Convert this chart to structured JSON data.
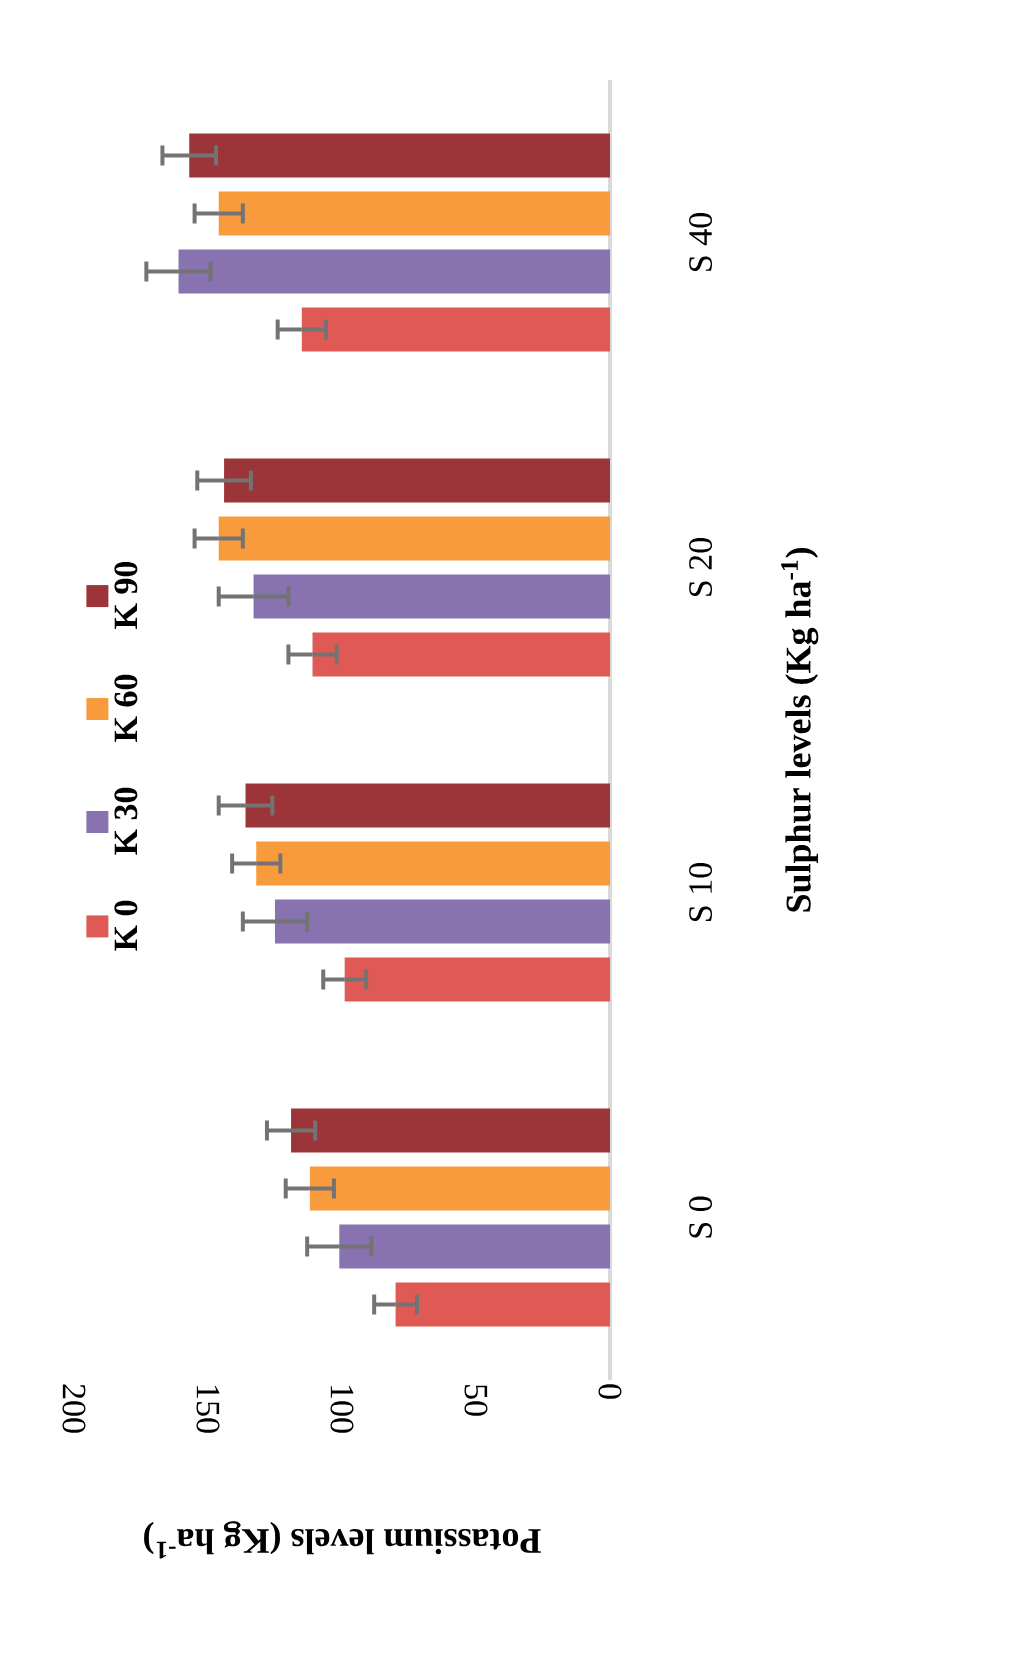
{
  "chart_data": {
    "type": "bar",
    "orientation": "horizontal",
    "xlabel": "Potassium levels (Kg ha$^{-1}$)",
    "ylabel": "Sulphur levels (Kg ha$^{-1}$)",
    "categories": [
      "S 40",
      "S 20",
      "S 10",
      "S 0"
    ],
    "xlim": [
      200,
      0
    ],
    "xticks": [
      200,
      150,
      100,
      50,
      0
    ],
    "legend": "left",
    "series": [
      {
        "name": "K 0",
        "color": "#e05a55",
        "values": [
          115,
          111,
          99,
          80
        ],
        "errors": [
          9,
          9,
          8,
          8
        ]
      },
      {
        "name": "K 30",
        "color": "#8872b0",
        "values": [
          161,
          133,
          125,
          101
        ],
        "errors": [
          12,
          13,
          12,
          12
        ]
      },
      {
        "name": "K 60",
        "color": "#f79b3c",
        "values": [
          146,
          146,
          132,
          112
        ],
        "errors": [
          9,
          9,
          9,
          9
        ]
      },
      {
        "name": "K 90",
        "color": "#9b3539",
        "values": [
          157,
          144,
          136,
          119
        ],
        "errors": [
          10,
          10,
          10,
          9
        ]
      }
    ]
  }
}
